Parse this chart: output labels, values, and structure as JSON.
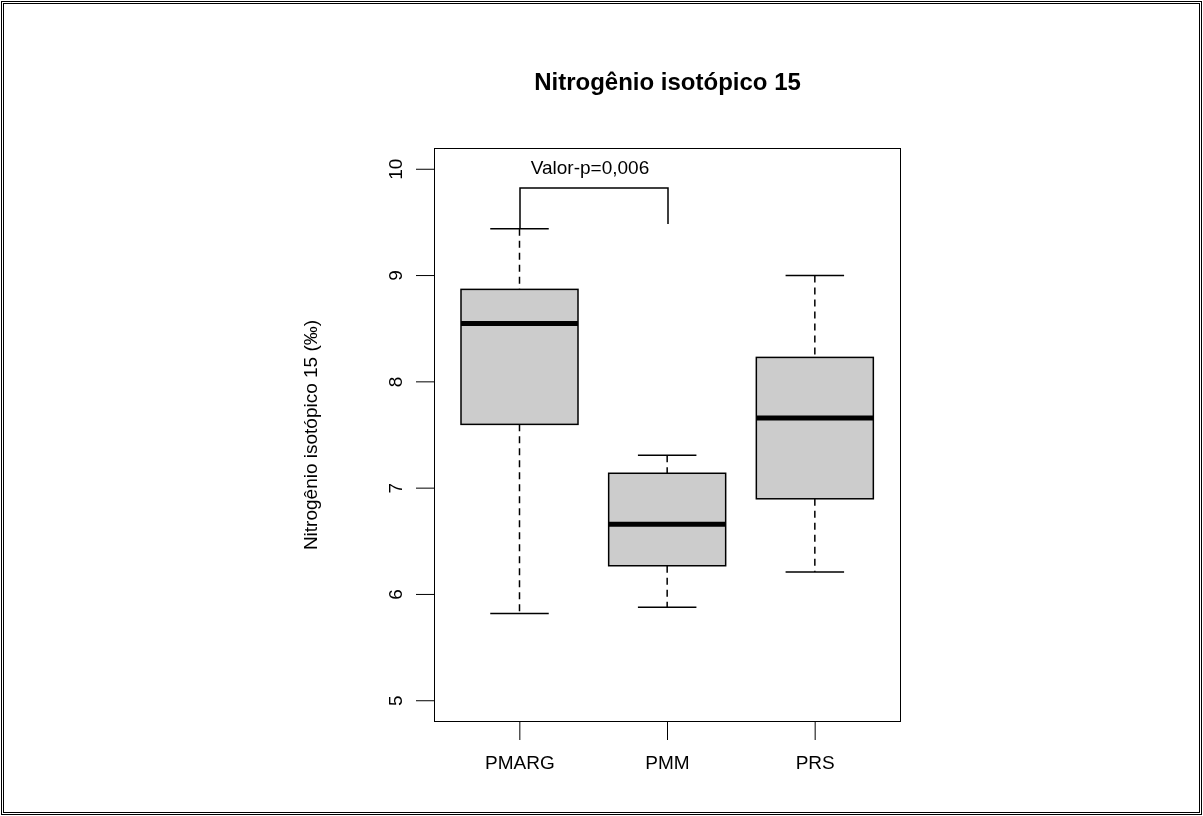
{
  "chart_data": {
    "type": "box",
    "title": "Nitrogênio isotópico 15",
    "ylabel": "Nitrogênio isotópico 15 (‰)",
    "categories": [
      "PMARG",
      "PMM",
      "PRS"
    ],
    "color": "#cccccc",
    "boxes": [
      {
        "low": 5.82,
        "q1": 7.6,
        "median": 8.55,
        "q3": 8.87,
        "high": 9.44
      },
      {
        "low": 5.88,
        "q1": 6.27,
        "median": 6.66,
        "q3": 7.14,
        "high": 7.31
      },
      {
        "low": 6.21,
        "q1": 6.9,
        "median": 7.66,
        "q3": 8.23,
        "high": 9.0
      }
    ],
    "ylim": [
      4.8,
      10.2
    ],
    "yticks": [
      5,
      6,
      7,
      8,
      9,
      10
    ],
    "annotations": [
      "Valor-p=0,006"
    ]
  }
}
